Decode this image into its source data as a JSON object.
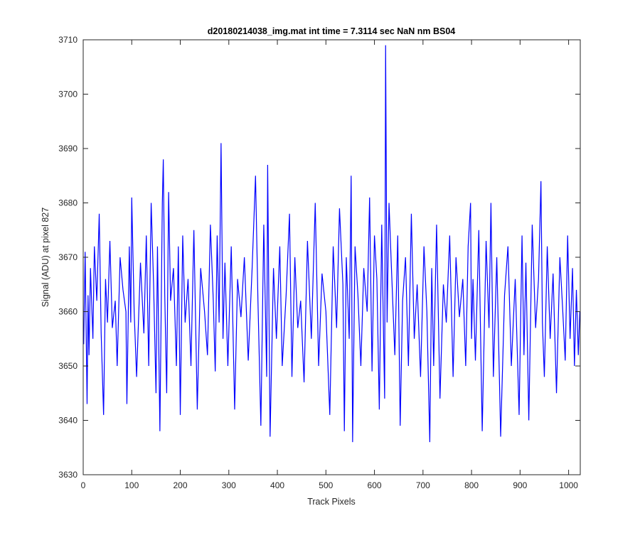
{
  "chart_data": {
    "type": "line",
    "title": "d20180214038_img.mat int time = 7.3114 sec  NaN nm BS04",
    "xlabel": "Track Pixels",
    "ylabel": "Signal (ADU) at pixel 827",
    "xlim": [
      0,
      1024
    ],
    "ylim": [
      3630,
      3710
    ],
    "xticks": [
      0,
      100,
      200,
      300,
      400,
      500,
      600,
      700,
      800,
      900,
      1000
    ],
    "yticks": [
      3630,
      3640,
      3650,
      3660,
      3670,
      3680,
      3690,
      3700,
      3710
    ],
    "grid": false,
    "box": true,
    "series": [
      {
        "color": "#0000ff",
        "x": [
          1,
          4,
          8,
          10,
          12,
          15,
          18,
          20,
          23,
          28,
          33,
          37,
          42,
          46,
          50,
          55,
          60,
          66,
          70,
          76,
          82,
          88,
          90,
          95,
          98,
          100,
          105,
          110,
          118,
          125,
          130,
          135,
          140,
          145,
          150,
          153,
          158,
          163,
          165,
          168,
          172,
          176,
          180,
          186,
          192,
          196,
          200,
          205,
          210,
          216,
          222,
          228,
          235,
          242,
          250,
          256,
          262,
          268,
          272,
          276,
          280,
          284,
          288,
          292,
          298,
          305,
          312,
          318,
          325,
          332,
          340,
          348,
          355,
          360,
          366,
          372,
          378,
          380,
          385,
          392,
          398,
          405,
          410,
          418,
          425,
          430,
          436,
          442,
          448,
          455,
          462,
          470,
          478,
          485,
          492,
          500,
          508,
          515,
          522,
          528,
          535,
          538,
          542,
          548,
          552,
          555,
          560,
          566,
          572,
          578,
          585,
          590,
          595,
          600,
          605,
          610,
          615,
          619,
          621,
          623,
          626,
          630,
          635,
          642,
          648,
          653,
          658,
          664,
          670,
          676,
          682,
          688,
          695,
          702,
          708,
          714,
          718,
          722,
          728,
          735,
          742,
          748,
          755,
          762,
          768,
          775,
          782,
          788,
          793,
          798,
          800,
          803,
          808,
          815,
          822,
          830,
          836,
          840,
          845,
          852,
          860,
          868,
          875,
          882,
          890,
          898,
          904,
          908,
          912,
          918,
          925,
          932,
          938,
          943,
          946,
          950,
          956,
          962,
          968,
          975,
          982,
          988,
          993,
          998,
          1003,
          1008,
          1012,
          1016,
          1020,
          1023
        ],
        "y": [
          3654,
          3671,
          3643,
          3663,
          3652,
          3668,
          3660,
          3655,
          3672,
          3662,
          3678,
          3656,
          3641,
          3666,
          3658,
          3673,
          3657,
          3662,
          3650,
          3670,
          3664,
          3660,
          3643,
          3672,
          3658,
          3681,
          3660,
          3648,
          3669,
          3656,
          3674,
          3650,
          3680,
          3665,
          3645,
          3672,
          3638,
          3680,
          3688,
          3663,
          3645,
          3682,
          3662,
          3668,
          3650,
          3672,
          3641,
          3674,
          3658,
          3666,
          3650,
          3675,
          3642,
          3668,
          3660,
          3652,
          3676,
          3662,
          3649,
          3674,
          3658,
          3691,
          3655,
          3669,
          3650,
          3672,
          3642,
          3666,
          3659,
          3670,
          3651,
          3668,
          3685,
          3662,
          3639,
          3676,
          3648,
          3687,
          3637,
          3668,
          3655,
          3672,
          3650,
          3663,
          3678,
          3648,
          3670,
          3657,
          3662,
          3647,
          3673,
          3655,
          3680,
          3650,
          3667,
          3660,
          3641,
          3672,
          3657,
          3679,
          3665,
          3638,
          3670,
          3655,
          3685,
          3636,
          3672,
          3663,
          3650,
          3668,
          3660,
          3681,
          3649,
          3674,
          3666,
          3642,
          3676,
          3654,
          3644,
          3709,
          3658,
          3680,
          3668,
          3652,
          3674,
          3639,
          3662,
          3670,
          3650,
          3678,
          3655,
          3665,
          3648,
          3672,
          3660,
          3636,
          3668,
          3650,
          3676,
          3644,
          3665,
          3658,
          3674,
          3648,
          3670,
          3659,
          3666,
          3650,
          3672,
          3680,
          3655,
          3666,
          3651,
          3675,
          3638,
          3673,
          3657,
          3680,
          3648,
          3670,
          3637,
          3663,
          3672,
          3650,
          3666,
          3641,
          3674,
          3652,
          3669,
          3640,
          3676,
          3657,
          3666,
          3684,
          3658,
          3648,
          3672,
          3655,
          3667,
          3645,
          3670,
          3660,
          3651,
          3674,
          3655,
          3668,
          3650,
          3664,
          3652,
          3660
        ]
      }
    ]
  }
}
